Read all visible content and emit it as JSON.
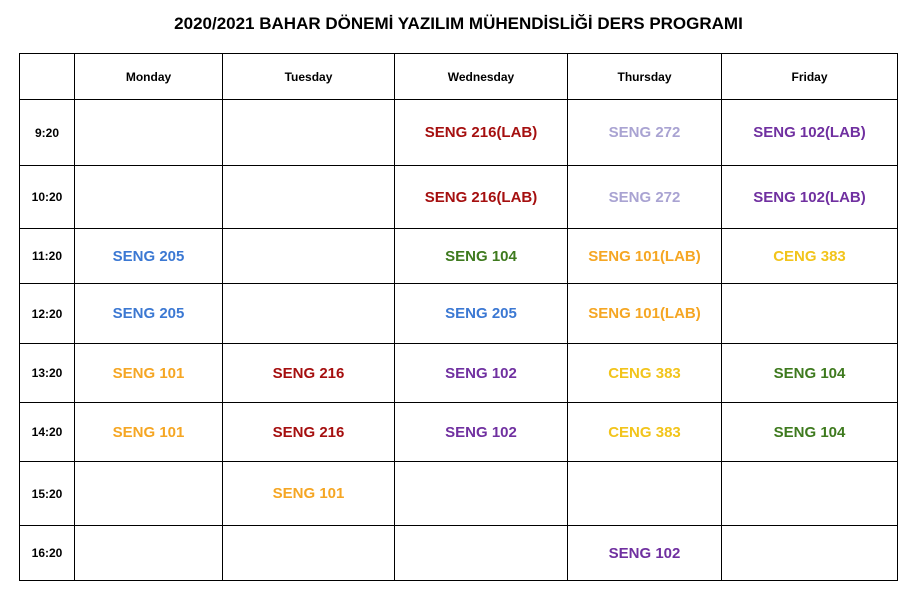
{
  "title": "2020/2021 BAHAR DÖNEMİ YAZILIM MÜHENDİSLİĞİ DERS PROGRAMI",
  "days": [
    "Monday",
    "Tuesday",
    "Wednesday",
    "Thursday",
    "Friday"
  ],
  "rows": [
    {
      "time": "9:20",
      "cells": [
        "",
        "",
        "SENG 216(LAB)",
        "SENG 272",
        "SENG 102(LAB)"
      ]
    },
    {
      "time": "10:20",
      "cells": [
        "",
        "",
        "SENG 216(LAB)",
        "SENG 272",
        "SENG 102(LAB)"
      ]
    },
    {
      "time": "11:20",
      "cells": [
        "SENG 205",
        "",
        "SENG 104",
        "SENG 101(LAB)",
        "CENG 383"
      ]
    },
    {
      "time": "12:20",
      "cells": [
        "SENG 205",
        "",
        "SENG 205",
        "SENG 101(LAB)",
        ""
      ]
    },
    {
      "time": "13:20",
      "cells": [
        "SENG 101",
        "SENG 216",
        "SENG 102",
        "CENG 383",
        "SENG 104"
      ]
    },
    {
      "time": "14:20",
      "cells": [
        "SENG 101",
        "SENG 216",
        "SENG 102",
        "CENG 383",
        "SENG 104"
      ]
    },
    {
      "time": "15:20",
      "cells": [
        "",
        "SENG 101",
        "",
        "",
        ""
      ]
    },
    {
      "time": "16:20",
      "cells": [
        "",
        "",
        "",
        "SENG 102",
        ""
      ]
    }
  ],
  "course_colors": {
    "SENG 216(LAB)": "#a50f0f",
    "SENG 216": "#a50f0f",
    "SENG 272": "#a9a3d2",
    "SENG 102(LAB)": "#7030a0",
    "SENG 102": "#7030a0",
    "SENG 205": "#3b78d3",
    "SENG 104": "#3e7a1e",
    "SENG 101(LAB)": "#f5a623",
    "SENG 101": "#f5a623",
    "CENG 383": "#f2c41b"
  }
}
